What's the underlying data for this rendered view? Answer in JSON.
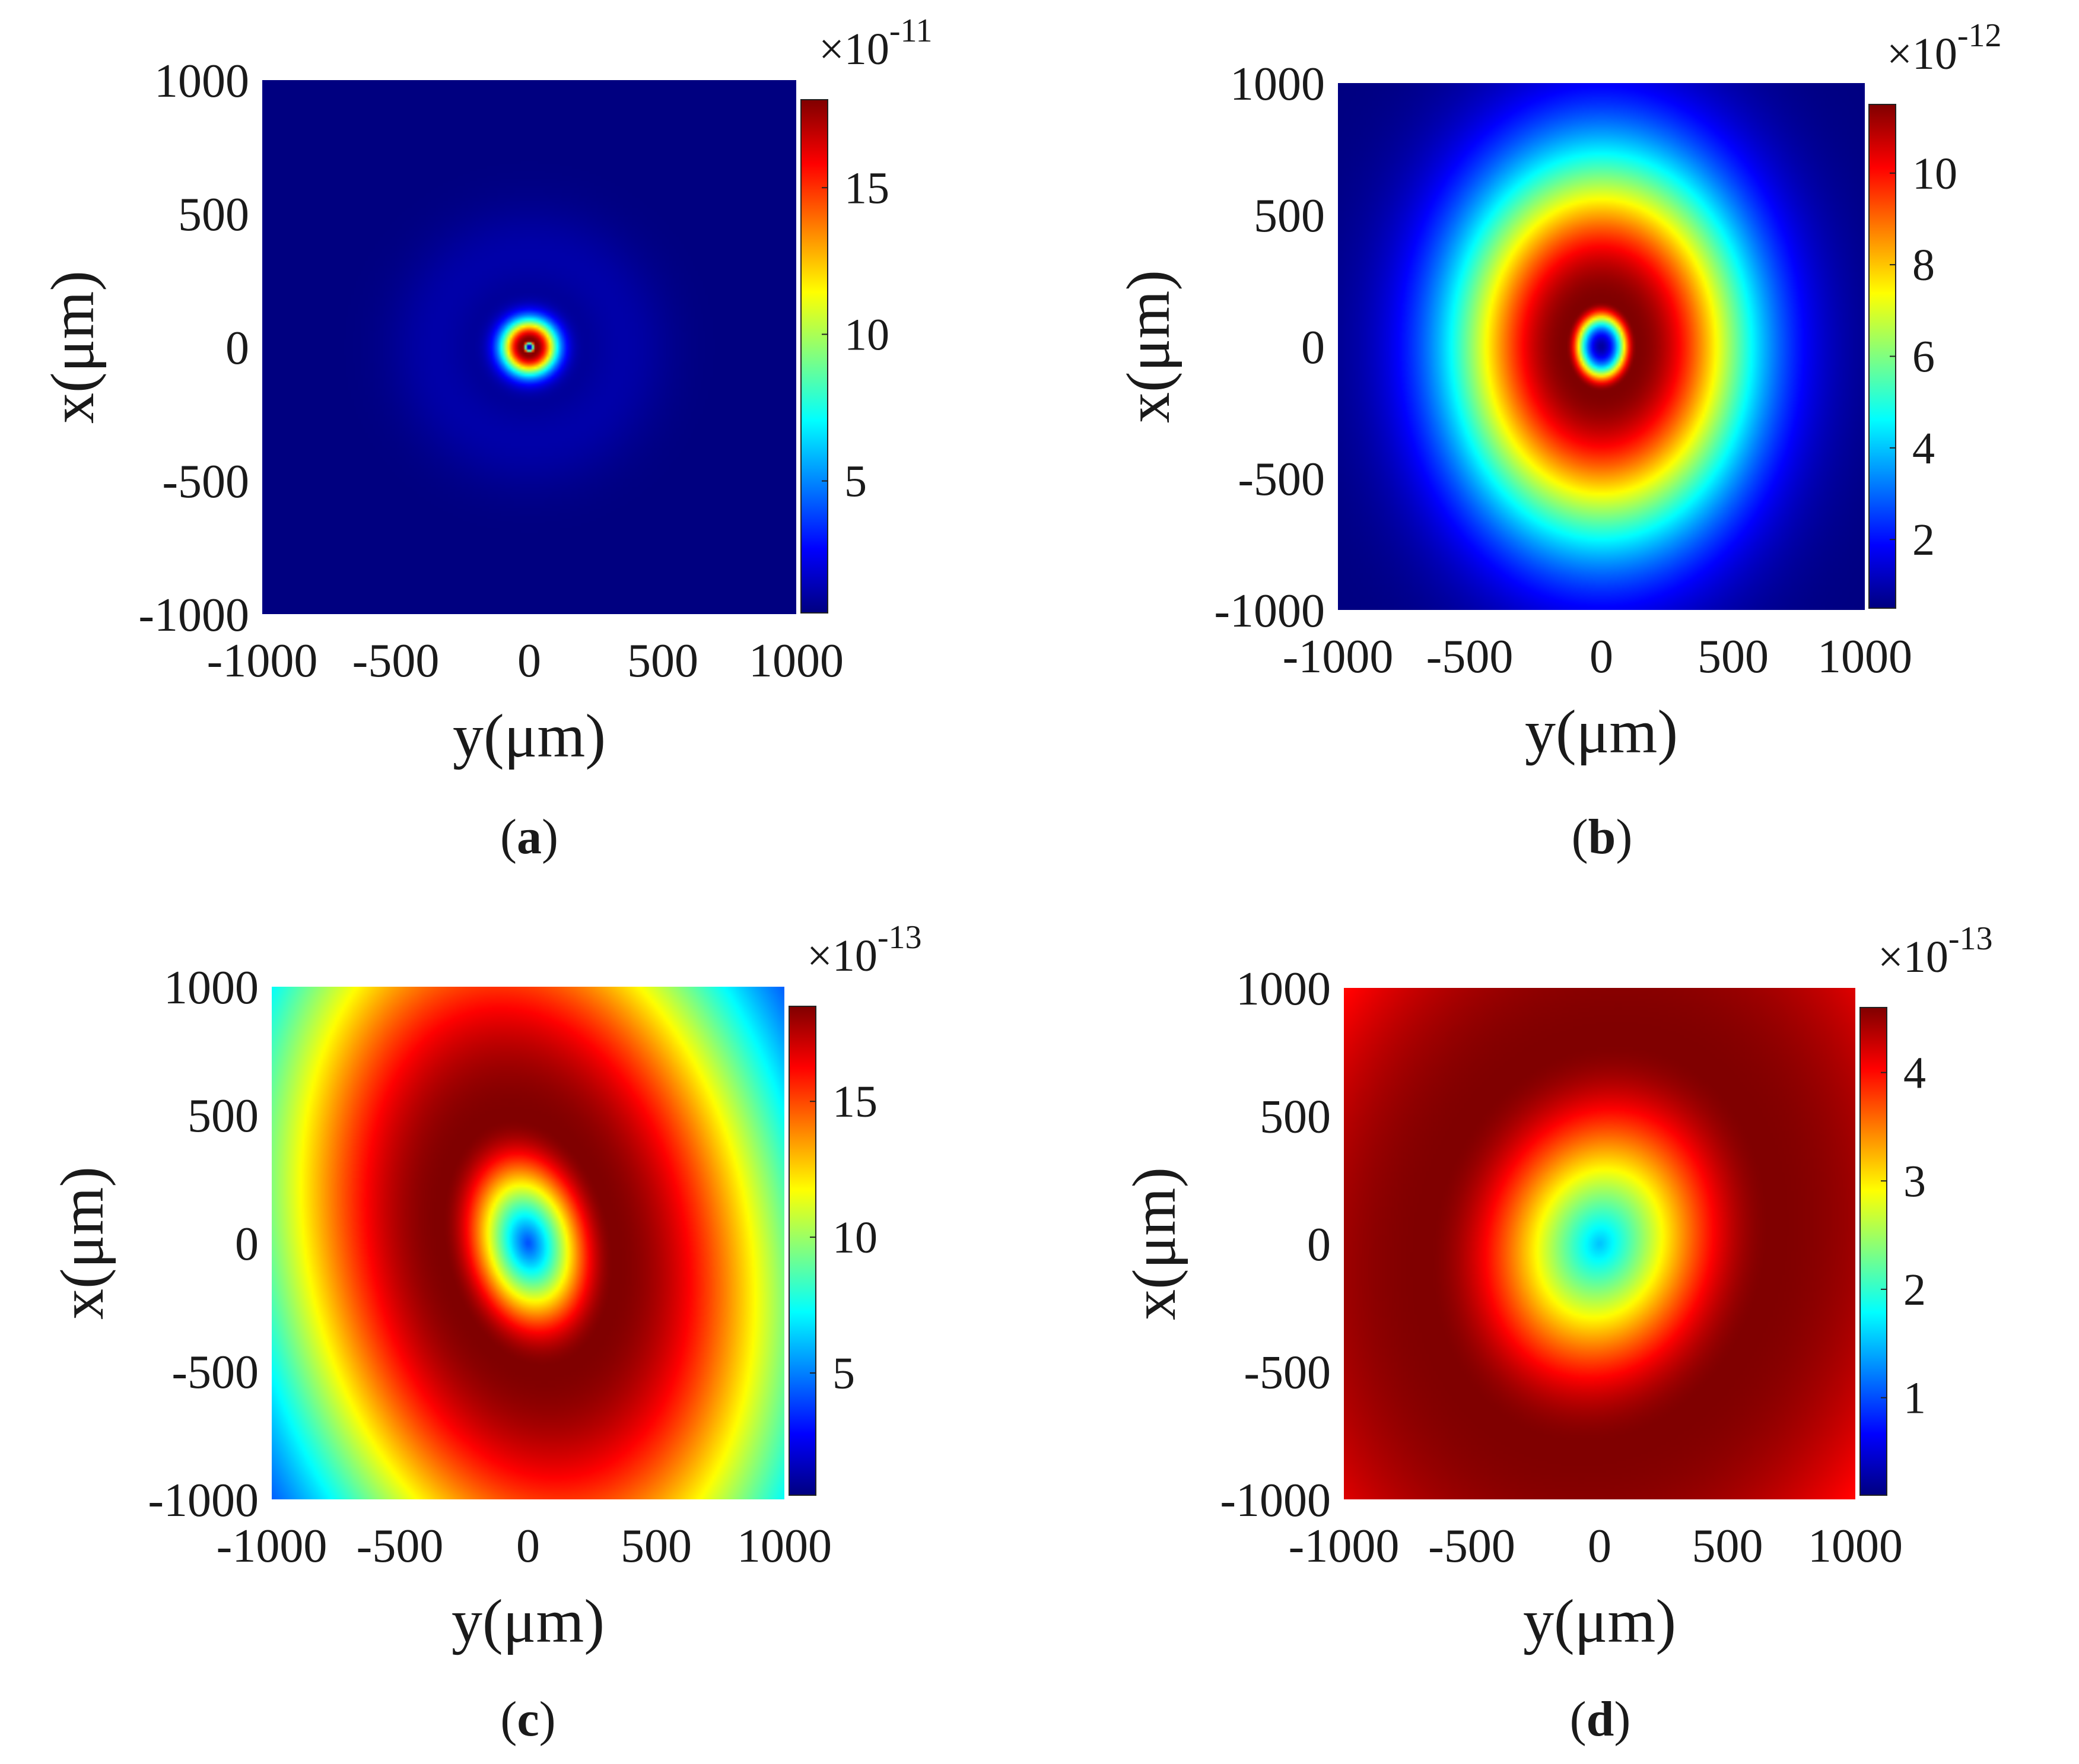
{
  "chart_data": [
    {
      "type": "heatmap",
      "panel_label": "a",
      "xlabel": "y(μm)",
      "ylabel": "x(μm)",
      "xlim": [
        -1000,
        1000
      ],
      "ylim": [
        -1000,
        1000
      ],
      "x_ticks": [
        "-1000",
        "-500",
        "0",
        "500",
        "1000"
      ],
      "y_ticks": [
        "1000",
        "500",
        "0",
        "-500",
        "-1000"
      ],
      "colorbar": {
        "exponent": "×10",
        "exponent_power": "-11",
        "min": 0.5,
        "max": 18,
        "ticks": [
          "5",
          "10",
          "15"
        ]
      },
      "field": {
        "description": "very narrow bright ring around a near-zero center",
        "ring_radius_um": 25,
        "ring_width_um": 12,
        "sx": 1.0,
        "sy": 1.0,
        "rotation_deg": 0,
        "floor": 0.0,
        "outer_falloff_um": 80,
        "halo_level": 0.04
      }
    },
    {
      "type": "heatmap",
      "panel_label": "b",
      "xlabel": "y(μm)",
      "ylabel": "x(μm)",
      "xlim": [
        -1000,
        1000
      ],
      "ylim": [
        -1000,
        1000
      ],
      "x_ticks": [
        "-1000",
        "-500",
        "0",
        "500",
        "1000"
      ],
      "y_ticks": [
        "1000",
        "500",
        "0",
        "-500",
        "-1000"
      ],
      "colorbar": {
        "exponent": "×10",
        "exponent_power": "-12",
        "min": 0.5,
        "max": 11.5,
        "ticks": [
          "2",
          "4",
          "6",
          "8",
          "10"
        ]
      },
      "field": {
        "description": "bright elliptical ring around a dark core",
        "ring_radius_um": 145,
        "ring_width_um": 75,
        "sx": 0.92,
        "sy": 1.18,
        "rotation_deg": 0,
        "floor": 0.0,
        "outer_falloff_um": 480,
        "halo_level": 0.0
      }
    },
    {
      "type": "heatmap",
      "panel_label": "c",
      "xlabel": "y(μm)",
      "ylabel": "x(μm)",
      "xlim": [
        -1000,
        1000
      ],
      "ylim": [
        -1000,
        1000
      ],
      "x_ticks": [
        "-1000",
        "-500",
        "0",
        "500",
        "1000"
      ],
      "y_ticks": [
        "1000",
        "500",
        "0",
        "-500",
        "-1000"
      ],
      "colorbar": {
        "exponent": "×10",
        "exponent_power": "-13",
        "min": 0.5,
        "max": 18.5,
        "ticks": [
          "5",
          "10",
          "15"
        ]
      },
      "field": {
        "description": "broad tilted elliptical ring around a dark core",
        "ring_radius_um": 420,
        "ring_width_um": 330,
        "sx": 0.78,
        "sy": 1.18,
        "rotation_deg": 12,
        "floor": 0.0,
        "outer_falloff_um": 1000,
        "halo_level": 0.0
      }
    },
    {
      "type": "heatmap",
      "panel_label": "d",
      "xlabel": "y(μm)",
      "ylabel": "x(μm)",
      "xlim": [
        -1000,
        1000
      ],
      "ylim": [
        -1000,
        1000
      ],
      "x_ticks": [
        "-1000",
        "-500",
        "0",
        "500",
        "1000"
      ],
      "y_ticks": [
        "1000",
        "500",
        "0",
        "-500",
        "-1000"
      ],
      "colorbar": {
        "exponent": "×10",
        "exponent_power": "-13",
        "min": 0.1,
        "max": 4.6,
        "ticks": [
          "1",
          "2",
          "3",
          "4"
        ]
      },
      "field": {
        "description": "dark core with wide saturated red plateau filling the frame",
        "ring_radius_um": 700,
        "ring_width_um": 650,
        "sx": 0.95,
        "sy": 1.15,
        "rotation_deg": -15,
        "floor": 0.0,
        "outer_falloff_um": 1900,
        "halo_level": 0.0
      }
    }
  ]
}
